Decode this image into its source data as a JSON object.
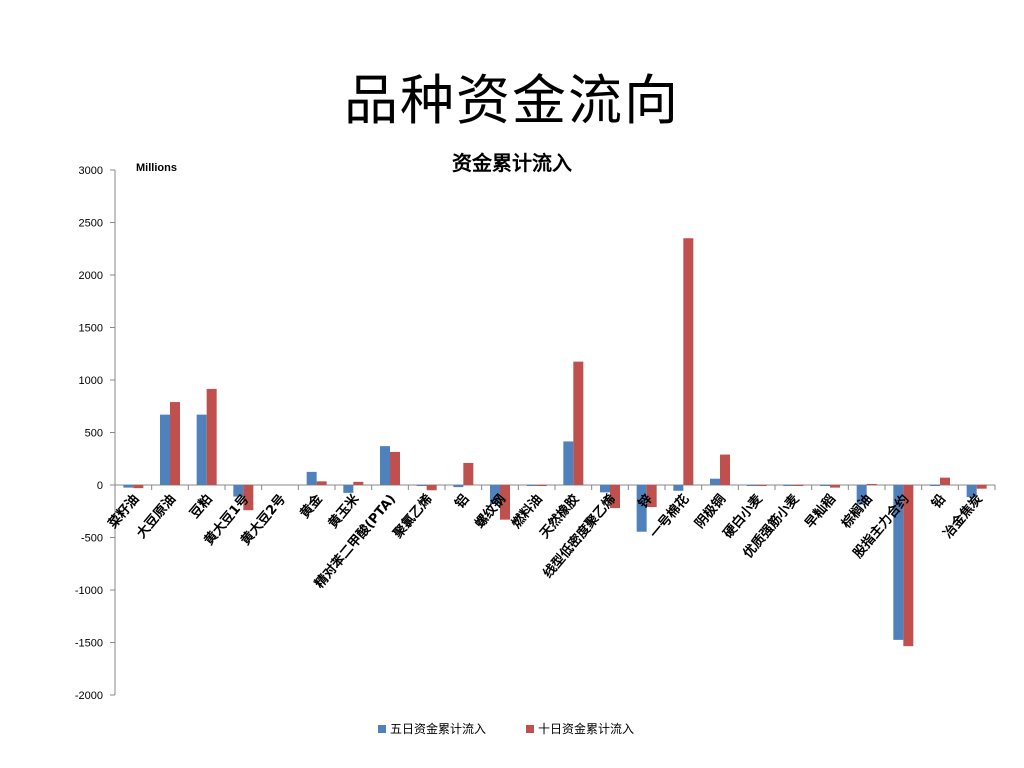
{
  "slide": {
    "title": "品种资金流向"
  },
  "chart_data": {
    "type": "bar",
    "title": "资金累计流入",
    "unit_label": "Millions",
    "xlabel": "",
    "ylabel": "",
    "ylim": [
      -2000,
      3000
    ],
    "yticks": [
      3000,
      2500,
      2000,
      1500,
      1000,
      500,
      0,
      -500,
      -1000,
      -1500,
      -2000
    ],
    "grid": false,
    "legend_position": "bottom",
    "categories": [
      "菜籽油",
      "大豆原油",
      "豆粕",
      "黄大豆1号",
      "黄大豆2号",
      "黄金",
      "黄玉米",
      "精对苯二甲酸(PTA)",
      "聚氯乙烯",
      "铝",
      "螺纹钢",
      "燃料油",
      "天然橡胶",
      "线型低密度聚乙烯",
      "锌",
      "一号棉花",
      "阴极铜",
      "硬白小麦",
      "优质强筋小麦",
      "早籼稻",
      "棕榈油",
      "股指主力合约",
      "铅",
      "冶金焦炭"
    ],
    "series": [
      {
        "name": "五日资金累计流入",
        "color": "#4f81bd",
        "values": [
          -25,
          670,
          670,
          -110,
          0,
          125,
          -75,
          370,
          -5,
          -20,
          -180,
          -5,
          415,
          -70,
          -445,
          -55,
          60,
          -5,
          -5,
          -5,
          -185,
          -1475,
          -5,
          -115
        ]
      },
      {
        "name": "十日资金累计流入",
        "color": "#c0504d",
        "values": [
          -30,
          790,
          915,
          -240,
          0,
          35,
          30,
          315,
          -50,
          210,
          -330,
          -10,
          1175,
          -220,
          -210,
          2350,
          290,
          -5,
          -5,
          -25,
          10,
          -1535,
          70,
          -35
        ]
      }
    ]
  }
}
